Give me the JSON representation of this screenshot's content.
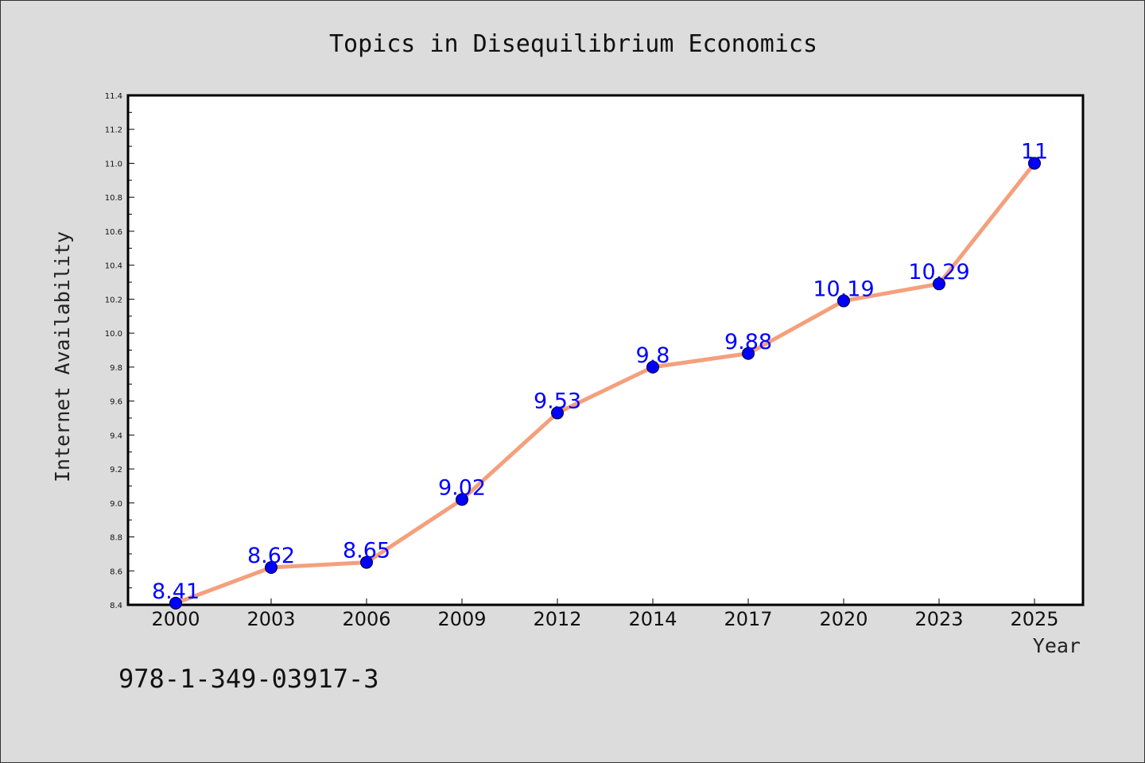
{
  "chart_data": {
    "type": "line",
    "title": "Topics in Disequilibrium Economics",
    "xlabel": "Year",
    "ylabel": "Internet Availability",
    "categories": [
      "2000",
      "2003",
      "2006",
      "2009",
      "2012",
      "2014",
      "2017",
      "2020",
      "2023",
      "2025"
    ],
    "series": [
      {
        "values": [
          8.41,
          8.62,
          8.65,
          9.02,
          9.53,
          9.8,
          9.88,
          10.19,
          10.29,
          11
        ],
        "line_color": "#f4a07c",
        "marker_color": "#0000ff"
      }
    ],
    "data_labels": [
      "8.41",
      "8.62",
      "8.65",
      "9.02",
      "9.53",
      "9.8",
      "9.88",
      "10.19",
      "10.29",
      "11"
    ],
    "ylim": [
      8.4,
      11.4
    ],
    "yticks": [
      "8.4",
      "8.6",
      "8.8",
      "9.0",
      "9.2",
      "9.4",
      "9.6",
      "9.8",
      "10.0",
      "10.2",
      "10.4",
      "10.6",
      "10.8",
      "11.0",
      "11.2",
      "11.4"
    ],
    "grid": false,
    "legend": "none"
  },
  "footer": {
    "isbn": "978-1-349-03917-3"
  },
  "colors": {
    "background": "#dcdcdc",
    "plot_background": "#ffffff",
    "line": "#f4a07c",
    "marker": "#0000ff",
    "data_label": "#0000ff"
  }
}
